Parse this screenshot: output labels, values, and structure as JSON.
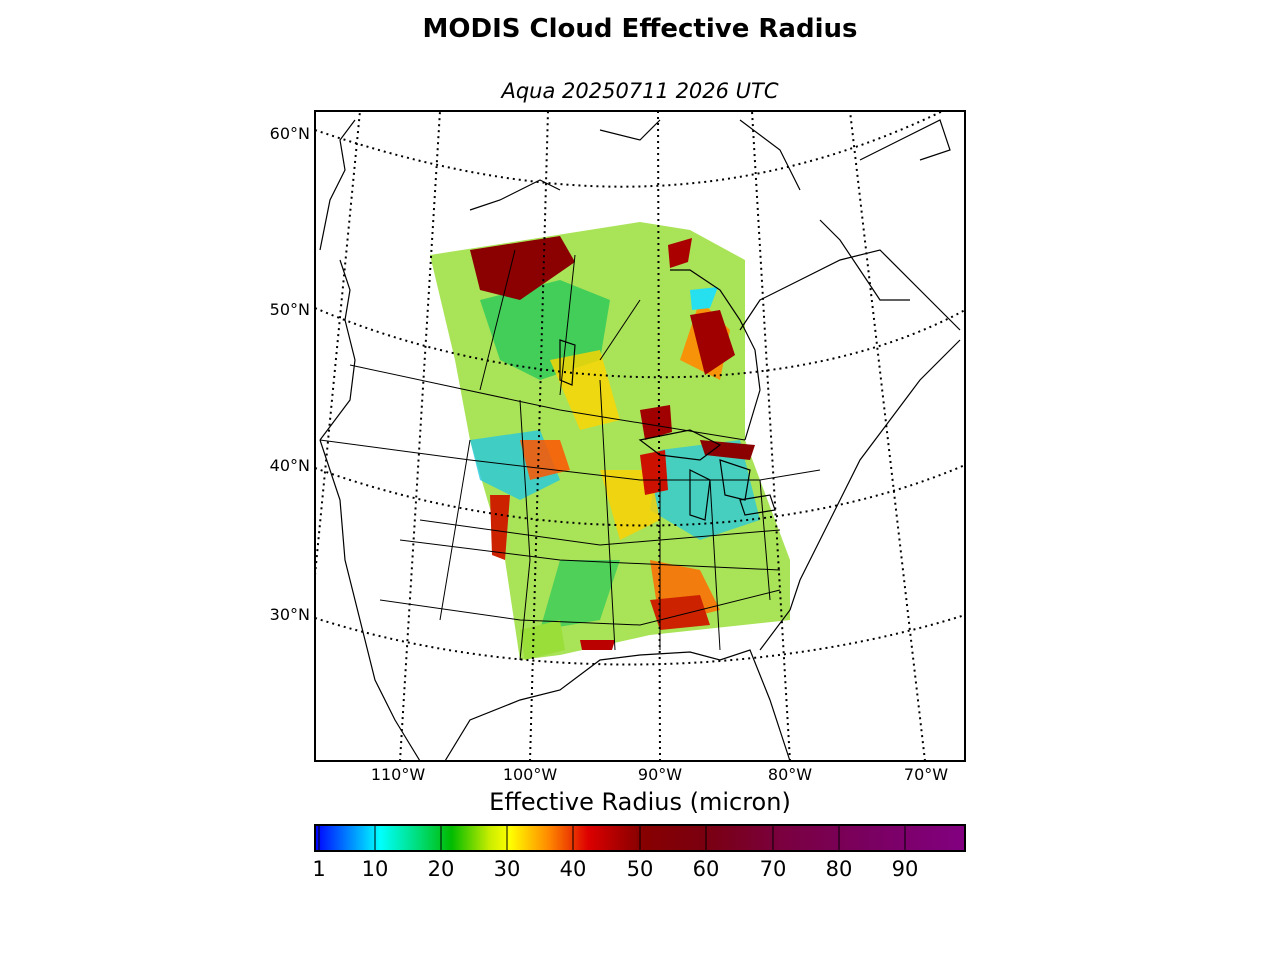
{
  "title": "MODIS Cloud Effective Radius",
  "subtitle": "Aqua 20250711 2026 UTC",
  "lat_labels": [
    "60°N",
    "50°N",
    "40°N",
    "30°N"
  ],
  "lon_labels": [
    "110°W",
    "100°W",
    "90°W",
    "80°W",
    "70°W"
  ],
  "colorbar": {
    "label": "Effective Radius (micron)",
    "ticks": [
      "1",
      "10",
      "20",
      "30",
      "40",
      "50",
      "60",
      "70",
      "80",
      "90"
    ],
    "colors": [
      "#0000ff",
      "#0066ff",
      "#00bbff",
      "#00ffff",
      "#00ee99",
      "#00cc33",
      "#33bb00",
      "#99dd00",
      "#eeff00",
      "#ffcc00",
      "#ff8800",
      "#ff3300",
      "#cc0000",
      "#990000",
      "#7a0000",
      "#7a0020",
      "#7a0040",
      "#7a0060",
      "#7a0070",
      "#800080"
    ]
  }
}
